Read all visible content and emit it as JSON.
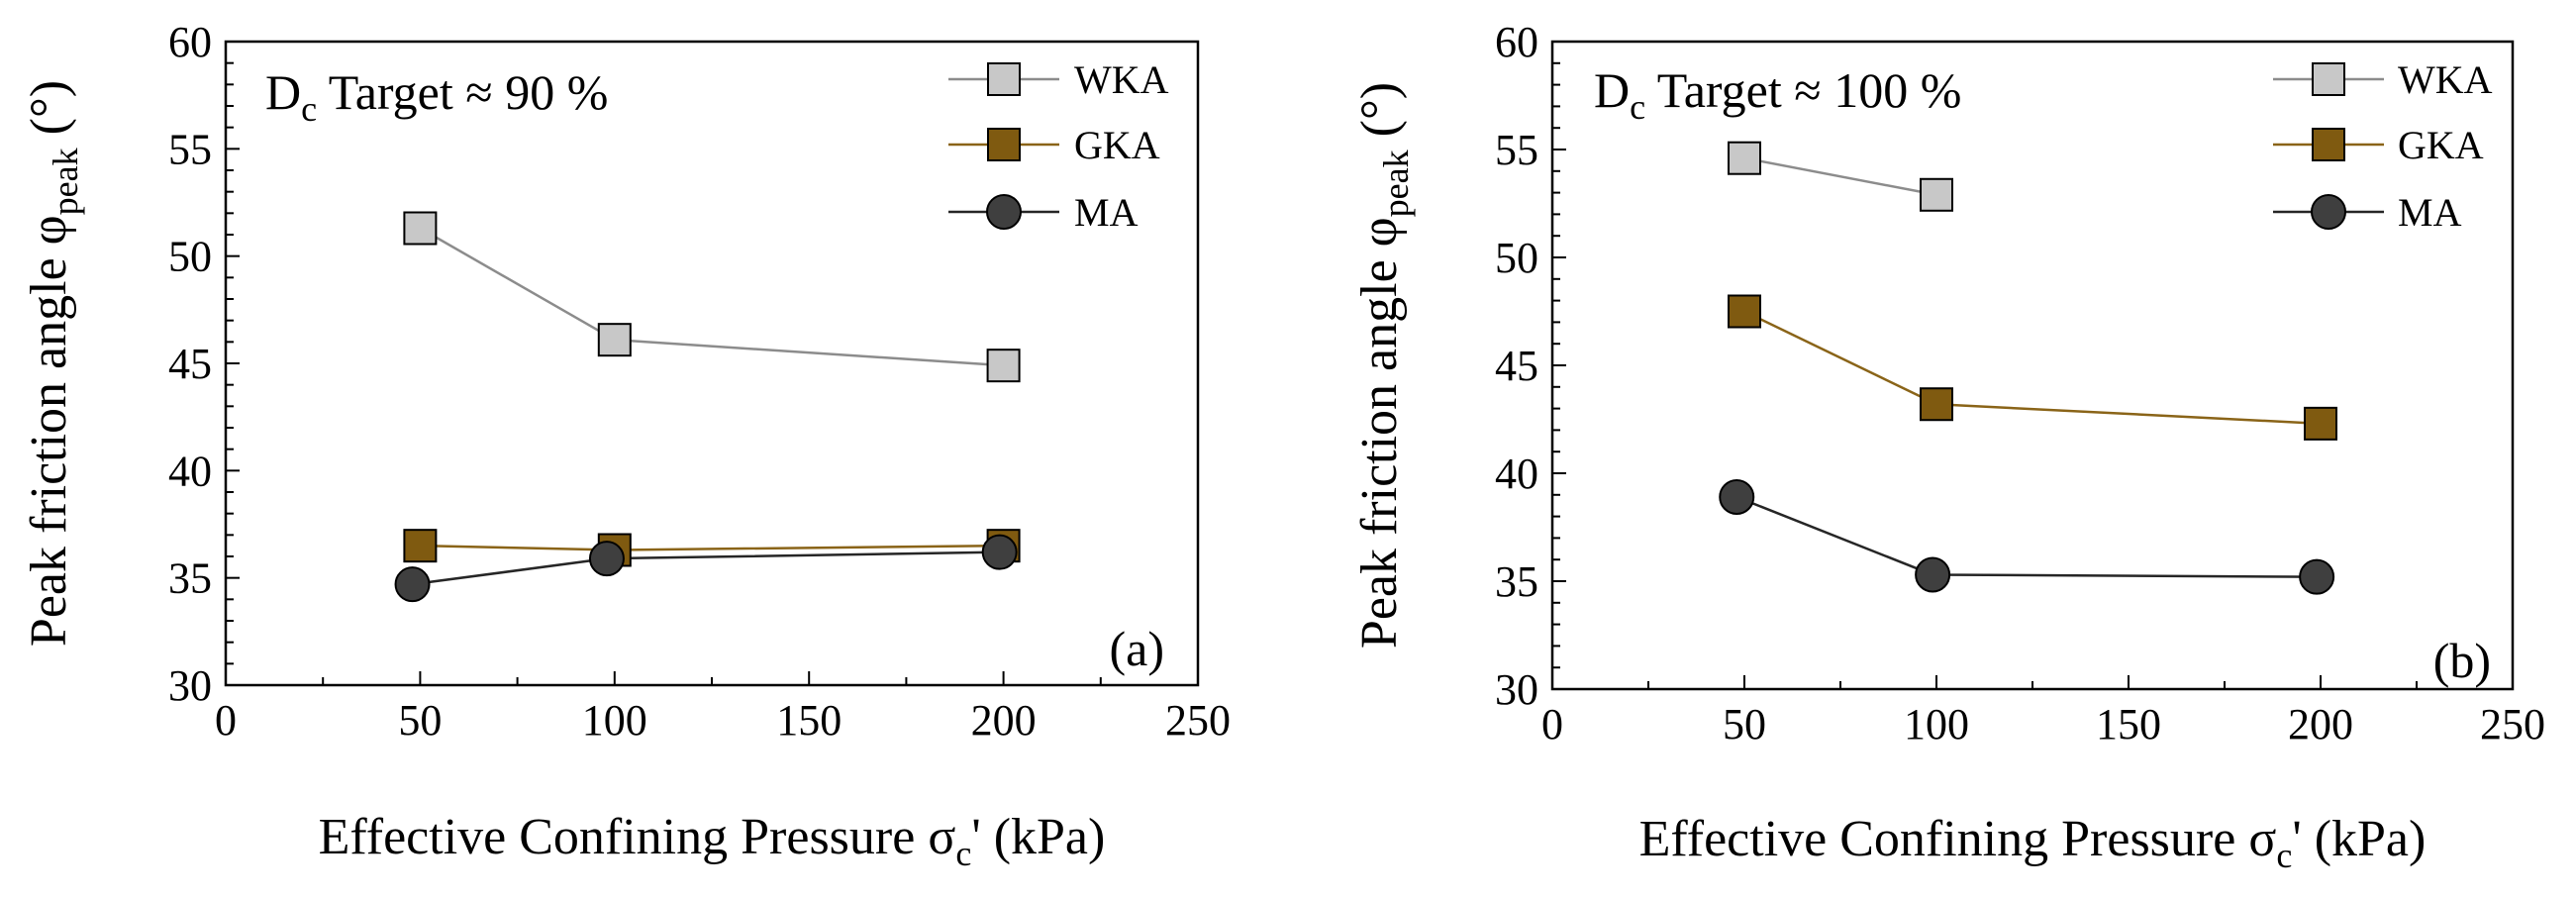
{
  "chart_data": [
    {
      "type": "line",
      "panel": "a",
      "annotation_main": "D",
      "annotation_sub": "c",
      "annotation_rest": " Target ≈ 90 %",
      "panel_label": "(a)",
      "xlabel_main": "Effective Confining Pressure σ",
      "xlabel_sub": "c",
      "xlabel_rest": "' (kPa)",
      "ylabel_main": "Peak friction angle φ",
      "ylabel_sub": "peak",
      "ylabel_rest": " (°)",
      "xlim": [
        0,
        250
      ],
      "ylim": [
        30,
        60
      ],
      "xticks": [
        "0",
        "50",
        "100",
        "150",
        "200",
        "250"
      ],
      "yticks": [
        "30",
        "35",
        "40",
        "45",
        "50",
        "55",
        "60"
      ],
      "legend_position": "top-right",
      "grid": false,
      "series": [
        {
          "name": "WKA",
          "marker": "square",
          "fill": "#c8c8c8",
          "line": "#8c8c8c",
          "x": [
            50,
            100,
            200
          ],
          "y": [
            51.3,
            46.1,
            44.9
          ]
        },
        {
          "name": "GKA",
          "marker": "square",
          "fill": "#7f5a10",
          "line": "#8a6418",
          "x": [
            50,
            100,
            200
          ],
          "y": [
            36.5,
            36.3,
            36.5
          ]
        },
        {
          "name": "MA",
          "marker": "circle",
          "fill": "#3f3f3f",
          "line": "#262626",
          "x": [
            48,
            98,
            199
          ],
          "y": [
            34.7,
            35.9,
            36.2
          ]
        }
      ]
    },
    {
      "type": "line",
      "panel": "b",
      "annotation_main": "D",
      "annotation_sub": "c",
      "annotation_rest": " Target ≈ 100 %",
      "panel_label": "(b)",
      "xlabel_main": "Effective Confining Pressure σ",
      "xlabel_sub": "c",
      "xlabel_rest": "' (kPa)",
      "ylabel_main": "Peak friction angle φ",
      "ylabel_sub": "peak",
      "ylabel_rest": " (°)",
      "xlim": [
        0,
        250
      ],
      "ylim": [
        30,
        60
      ],
      "xticks": [
        "0",
        "50",
        "100",
        "150",
        "200",
        "250"
      ],
      "yticks": [
        "30",
        "35",
        "40",
        "45",
        "50",
        "55",
        "60"
      ],
      "legend_position": "top-right",
      "grid": false,
      "series": [
        {
          "name": "WKA",
          "marker": "square",
          "fill": "#c8c8c8",
          "line": "#8c8c8c",
          "x": [
            50,
            100
          ],
          "y": [
            54.6,
            52.9
          ]
        },
        {
          "name": "GKA",
          "marker": "square",
          "fill": "#7f5a10",
          "line": "#8a6418",
          "x": [
            50,
            100,
            200
          ],
          "y": [
            47.5,
            43.2,
            42.3
          ]
        },
        {
          "name": "MA",
          "marker": "circle",
          "fill": "#3f3f3f",
          "line": "#262626",
          "x": [
            48,
            99,
            199
          ],
          "y": [
            38.9,
            35.3,
            35.2
          ]
        }
      ]
    }
  ]
}
